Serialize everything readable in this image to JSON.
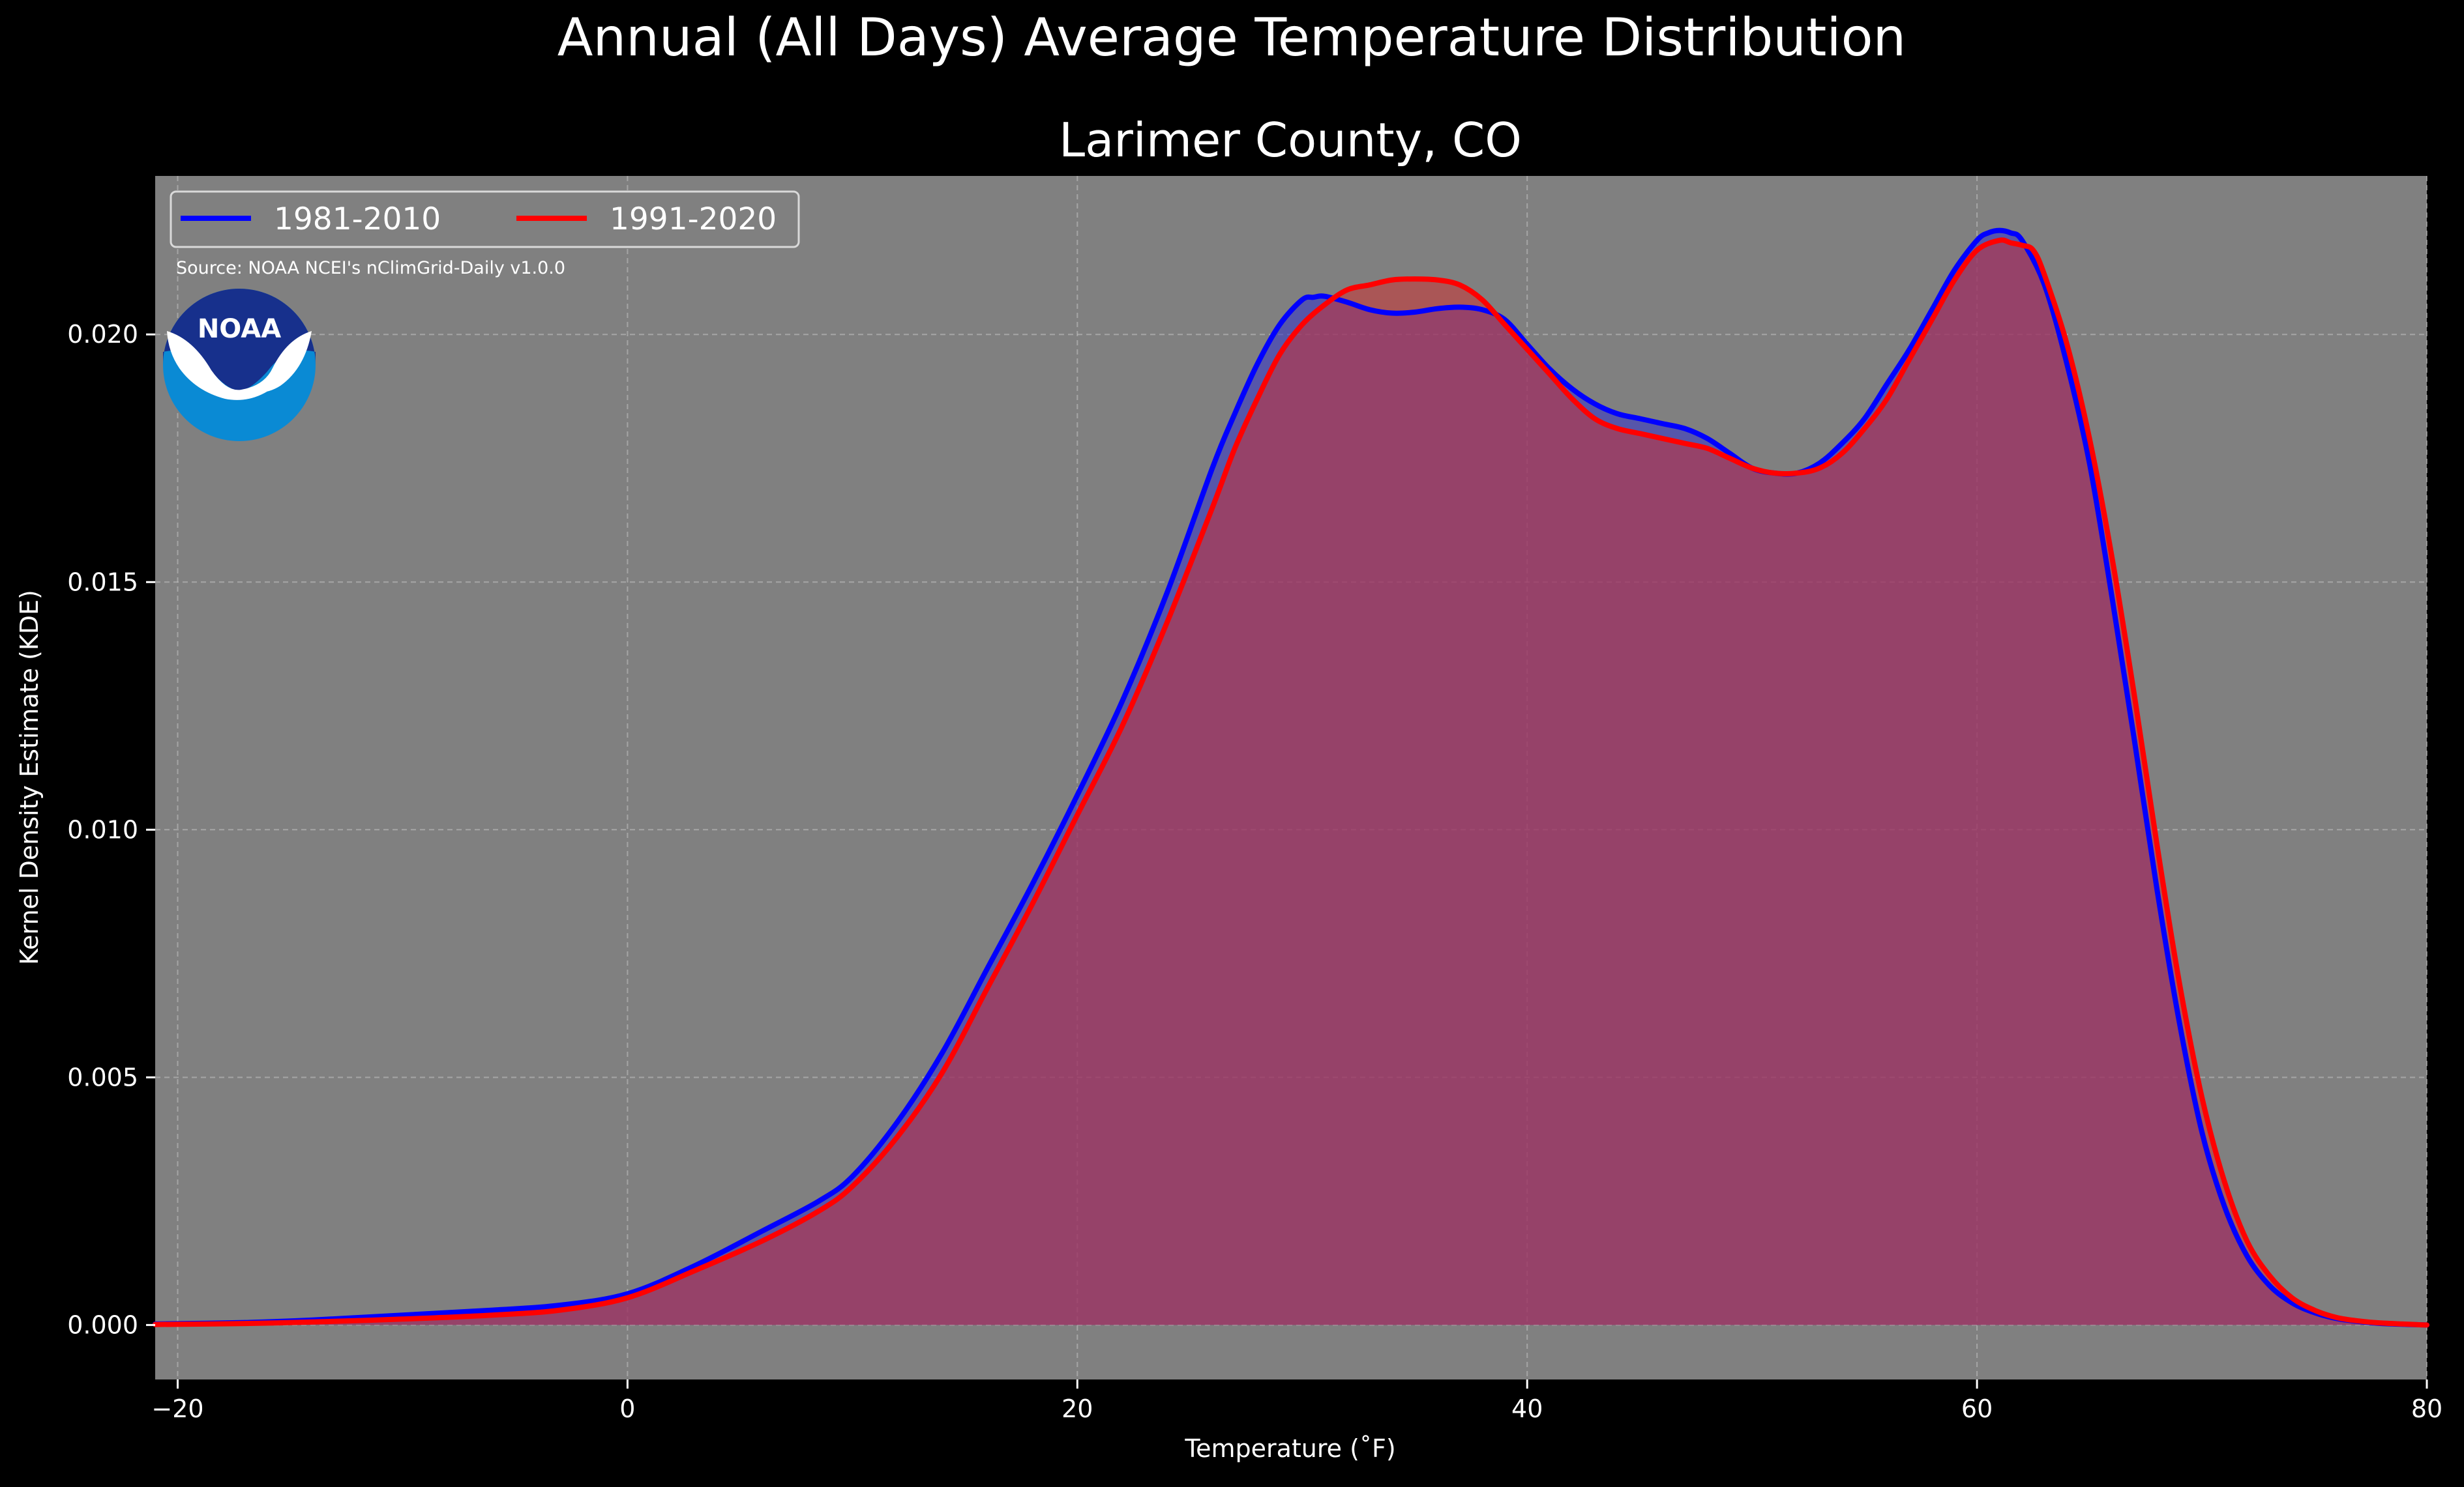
{
  "chart_data": {
    "type": "area",
    "suptitle": "Annual (All Days) Average Temperature Distribution",
    "title": "Larimer County, CO",
    "xlabel": "Temperature ($^\\circ$F)",
    "xlabel_display": "Temperature (˚F)",
    "ylabel": "Kernel Density Estimate (KDE)",
    "xlim": [
      -21,
      80
    ],
    "ylim": [
      -0.0011,
      0.0232
    ],
    "xticks": [
      -20,
      0,
      20,
      40,
      60,
      80
    ],
    "xtick_labels": [
      "−20",
      "0",
      "20",
      "40",
      "60",
      "80"
    ],
    "yticks": [
      0.0,
      0.005,
      0.01,
      0.015,
      0.02
    ],
    "ytick_labels": [
      "0.000",
      "0.005",
      "0.010",
      "0.015",
      "0.020"
    ],
    "grid": true,
    "legend_placement": "upper-left",
    "plot_background": "#808080",
    "figure_background": "#000000",
    "series": [
      {
        "name": "1981-2010",
        "color": "#0000ff",
        "fill_color": "#3333cc",
        "x": [
          -21,
          -17,
          -14,
          -10,
          -6,
          -3,
          0,
          3,
          6,
          8.5,
          10,
          12,
          14,
          16,
          18,
          20,
          22,
          24,
          26,
          27,
          28,
          29,
          30,
          30.5,
          31,
          32,
          33,
          34,
          35,
          36,
          37,
          38,
          39,
          40,
          41,
          42,
          43,
          44,
          45,
          46,
          47,
          48,
          49,
          50,
          51,
          52,
          53,
          54,
          55,
          56,
          57,
          58,
          59,
          60,
          60.5,
          61,
          61.5,
          62,
          63,
          64,
          65,
          66,
          67,
          68,
          69,
          70,
          71,
          72,
          73,
          74,
          75,
          76,
          77,
          78,
          80
        ],
        "y": [
          2e-05,
          5e-05,
          0.0001,
          0.0002,
          0.0003,
          0.0004,
          0.00063,
          0.0012,
          0.0019,
          0.0025,
          0.003,
          0.0041,
          0.0055,
          0.0072,
          0.0089,
          0.0107,
          0.0126,
          0.0148,
          0.0173,
          0.0184,
          0.0194,
          0.0202,
          0.0207,
          0.02075,
          0.02077,
          0.02065,
          0.0205,
          0.02043,
          0.02045,
          0.02052,
          0.02055,
          0.0205,
          0.0203,
          0.0198,
          0.0193,
          0.0189,
          0.0186,
          0.0184,
          0.0183,
          0.0182,
          0.0181,
          0.0179,
          0.0176,
          0.0173,
          0.0172,
          0.0172,
          0.0174,
          0.0178,
          0.0183,
          0.019,
          0.0197,
          0.0205,
          0.0213,
          0.0219,
          0.02205,
          0.0221,
          0.02205,
          0.0219,
          0.021,
          0.0194,
          0.0174,
          0.0147,
          0.0118,
          0.0088,
          0.0061,
          0.0039,
          0.0024,
          0.0014,
          0.0008,
          0.00045,
          0.00025,
          0.00013,
          7e-05,
          3e-05,
          0.0
        ]
      },
      {
        "name": "1991-2020",
        "color": "#ff0000",
        "fill_color": "#cc3333",
        "x": [
          -21,
          -17,
          -14,
          -10,
          -6,
          -3,
          0,
          3,
          6,
          8.5,
          10,
          12,
          14,
          16,
          18,
          20,
          22,
          24,
          26,
          27,
          28,
          29,
          30,
          31,
          32,
          33,
          34,
          35,
          36,
          37,
          38,
          39,
          40,
          41,
          42,
          43,
          44,
          45,
          46,
          47,
          48,
          49,
          50,
          51,
          52,
          53,
          54,
          55,
          56,
          57,
          58,
          59,
          60,
          61,
          61.5,
          62,
          62.5,
          63,
          64,
          65,
          66,
          67,
          68,
          69,
          70,
          71,
          72,
          73,
          74,
          75,
          76,
          77,
          78,
          80
        ],
        "y": [
          1e-05,
          3e-05,
          6e-05,
          0.00012,
          0.0002,
          0.0003,
          0.00055,
          0.0011,
          0.0017,
          0.0023,
          0.0028,
          0.0038,
          0.0051,
          0.0068,
          0.0085,
          0.0103,
          0.0121,
          0.0142,
          0.0165,
          0.0177,
          0.0187,
          0.0196,
          0.0202,
          0.0206,
          0.0209,
          0.021,
          0.0211,
          0.02112,
          0.0211,
          0.021,
          0.0207,
          0.0202,
          0.0197,
          0.0192,
          0.0187,
          0.0183,
          0.0181,
          0.018,
          0.0179,
          0.0178,
          0.0177,
          0.0175,
          0.0173,
          0.0172,
          0.0172,
          0.0173,
          0.0176,
          0.0181,
          0.0187,
          0.0195,
          0.0203,
          0.0211,
          0.0217,
          0.0219,
          0.02185,
          0.0218,
          0.0217,
          0.0212,
          0.0198,
          0.0179,
          0.0155,
          0.0127,
          0.0097,
          0.0069,
          0.0046,
          0.0029,
          0.0017,
          0.001,
          0.00055,
          0.0003,
          0.00015,
          8e-05,
          4e-05,
          0.0
        ]
      }
    ],
    "annotations": [
      {
        "text": "Source: NOAA NCEI's nClimGrid-Daily v1.0.0",
        "position": "upper-left"
      }
    ],
    "logo": {
      "text": "NOAA",
      "type": "noaa-logo"
    }
  }
}
